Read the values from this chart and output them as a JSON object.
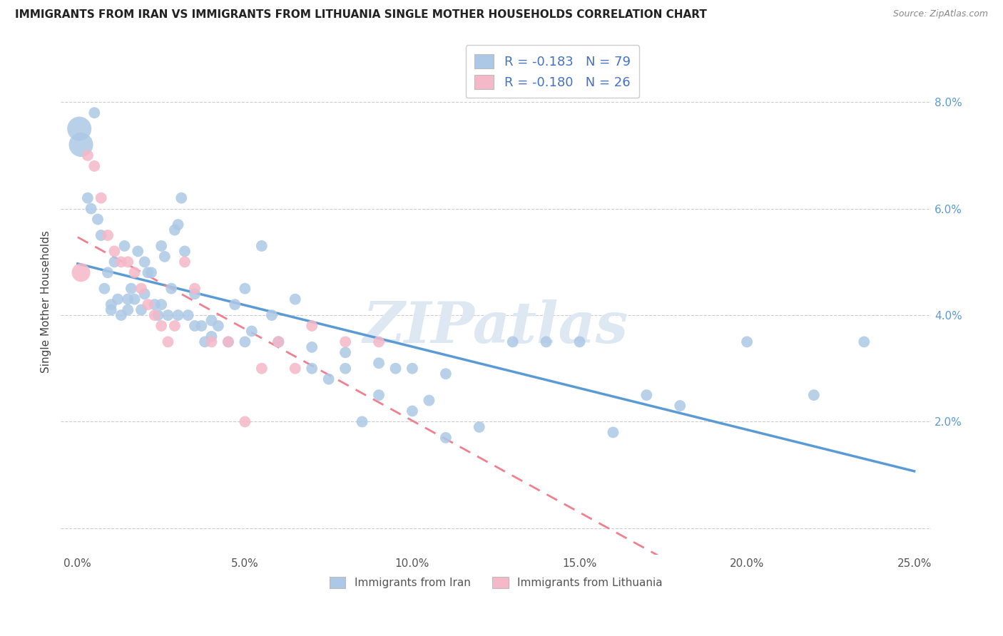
{
  "title": "IMMIGRANTS FROM IRAN VS IMMIGRANTS FROM LITHUANIA SINGLE MOTHER HOUSEHOLDS CORRELATION CHART",
  "source": "Source: ZipAtlas.com",
  "ylabel_label": "Single Mother Households",
  "legend_blue_label": "Immigrants from Iran",
  "legend_pink_label": "Immigrants from Lithuania",
  "R_blue": "-0.183",
  "N_blue": "79",
  "R_pink": "-0.180",
  "N_pink": "26",
  "blue_color": "#adc8e6",
  "pink_color": "#f5b8c8",
  "line_blue": "#5b9bd5",
  "line_pink": "#f08090",
  "watermark": "ZIPatlas",
  "iran_x": [
    0.05,
    0.1,
    0.3,
    0.4,
    0.5,
    0.6,
    0.7,
    0.8,
    0.9,
    1.0,
    1.1,
    1.2,
    1.3,
    1.4,
    1.5,
    1.6,
    1.7,
    1.8,
    1.9,
    2.0,
    2.1,
    2.2,
    2.3,
    2.4,
    2.5,
    2.6,
    2.7,
    2.8,
    2.9,
    3.0,
    3.1,
    3.2,
    3.3,
    3.5,
    3.7,
    3.8,
    4.0,
    4.2,
    4.5,
    4.7,
    5.0,
    5.2,
    5.5,
    5.8,
    6.0,
    6.5,
    7.0,
    7.5,
    8.0,
    8.5,
    9.0,
    9.5,
    10.0,
    10.5,
    11.0,
    12.0,
    13.0,
    14.0,
    15.0,
    16.0,
    17.0,
    18.0,
    20.0,
    22.0,
    23.5,
    1.0,
    1.5,
    2.0,
    2.5,
    3.0,
    3.5,
    4.0,
    5.0,
    6.0,
    7.0,
    8.0,
    9.0,
    10.0,
    11.0
  ],
  "iran_y": [
    7.5,
    7.2,
    6.2,
    6.0,
    7.8,
    5.8,
    5.5,
    4.5,
    4.8,
    4.2,
    5.0,
    4.3,
    4.0,
    5.3,
    4.1,
    4.5,
    4.3,
    5.2,
    4.1,
    5.0,
    4.8,
    4.8,
    4.2,
    4.0,
    5.3,
    5.1,
    4.0,
    4.5,
    5.6,
    5.7,
    6.2,
    5.2,
    4.0,
    4.4,
    3.8,
    3.5,
    3.9,
    3.8,
    3.5,
    4.2,
    4.5,
    3.7,
    5.3,
    4.0,
    3.5,
    4.3,
    3.0,
    2.8,
    3.0,
    2.0,
    2.5,
    3.0,
    2.2,
    2.4,
    1.7,
    1.9,
    3.5,
    3.5,
    3.5,
    1.8,
    2.5,
    2.3,
    3.5,
    2.5,
    3.5,
    4.1,
    4.3,
    4.4,
    4.2,
    4.0,
    3.8,
    3.6,
    3.5,
    3.5,
    3.4,
    3.3,
    3.1,
    3.0,
    2.9
  ],
  "lith_x": [
    0.1,
    0.3,
    0.5,
    0.7,
    0.9,
    1.1,
    1.3,
    1.5,
    1.7,
    1.9,
    2.1,
    2.3,
    2.5,
    2.7,
    2.9,
    3.2,
    3.5,
    4.0,
    4.5,
    5.0,
    5.5,
    6.0,
    6.5,
    7.0,
    8.0,
    9.0
  ],
  "lith_y": [
    4.8,
    7.0,
    6.8,
    6.2,
    5.5,
    5.2,
    5.0,
    5.0,
    4.8,
    4.5,
    4.2,
    4.0,
    3.8,
    3.5,
    3.8,
    5.0,
    4.5,
    3.5,
    3.5,
    2.0,
    3.0,
    3.5,
    3.0,
    3.8,
    3.5,
    3.5
  ]
}
